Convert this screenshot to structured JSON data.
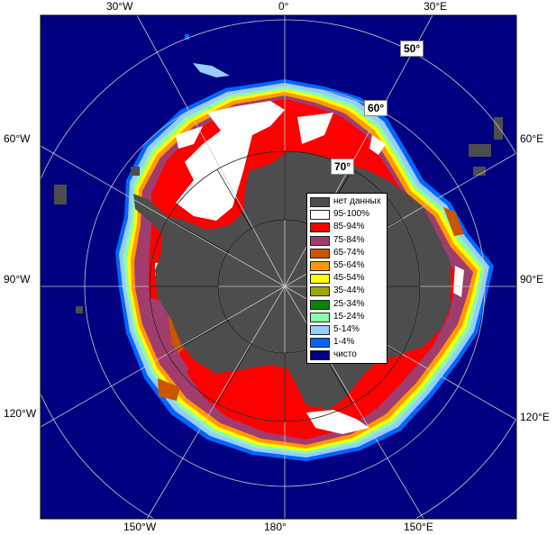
{
  "map": {
    "colors": {
      "ocean": "#000080",
      "no_data": "#4d4d4d",
      "ice_95_100": "#ffffff",
      "ice_85_94": "#ff0000",
      "ice_75_84": "#a03c6e",
      "ice_65_74": "#cc5500",
      "ice_55_64": "#ff9900",
      "ice_45_54": "#ffff00",
      "ice_35_44": "#99aa00",
      "ice_25_34": "#008800",
      "ice_15_24": "#88ffaa",
      "ice_5_14": "#99ccff",
      "ice_1_4": "#0066ff",
      "clear": "#000080"
    },
    "top_labels": [
      "30°W",
      "0°",
      "30°E"
    ],
    "left_labels": [
      "60°W",
      "90°W",
      "120°W"
    ],
    "right_labels": [
      "60°E",
      "90°E",
      "120°E"
    ],
    "bottom_labels": [
      "150°W",
      "180°",
      "150°E"
    ],
    "lat_labels": [
      "50°",
      "60°",
      "70°"
    ]
  },
  "legend": {
    "items": [
      {
        "label": "нет данных",
        "color": "#4d4d4d"
      },
      {
        "label": "95-100%",
        "color": "#ffffff"
      },
      {
        "label": "85-94%",
        "color": "#ff0000"
      },
      {
        "label": "75-84%",
        "color": "#a03c6e"
      },
      {
        "label": "65-74%",
        "color": "#cc5500"
      },
      {
        "label": "55-64%",
        "color": "#ff9900"
      },
      {
        "label": "45-54%",
        "color": "#ffff00"
      },
      {
        "label": "35-44%",
        "color": "#99aa00"
      },
      {
        "label": "25-34%",
        "color": "#008800"
      },
      {
        "label": "15-24%",
        "color": "#88ffaa"
      },
      {
        "label": "5-14%",
        "color": "#99ccff"
      },
      {
        "label": "1-4%",
        "color": "#0066ff"
      },
      {
        "label": "чисто",
        "color": "#000080"
      }
    ]
  }
}
